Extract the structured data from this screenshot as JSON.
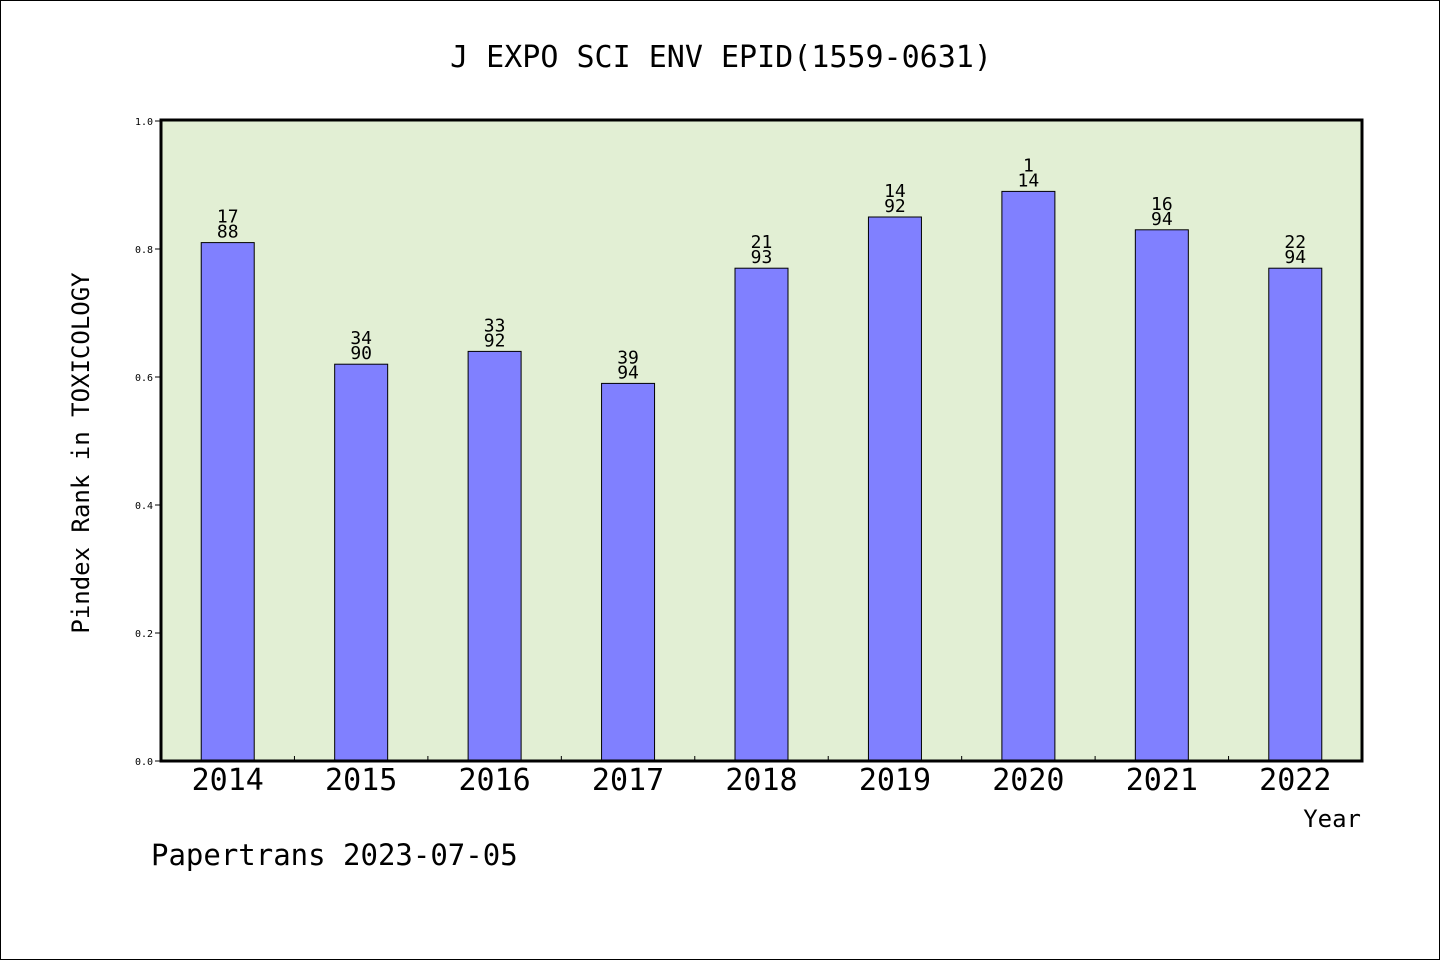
{
  "chart_data": {
    "type": "bar",
    "title": "J EXPO SCI ENV EPID(1559-0631)",
    "xlabel": "Year",
    "ylabel": "Pindex Rank in TOXICOLOGY",
    "ylim": [
      0,
      1.0
    ],
    "yticks": [
      "0.0",
      "0.2",
      "0.4",
      "0.6",
      "0.8",
      "1.0"
    ],
    "categories": [
      "2014",
      "2015",
      "2016",
      "2017",
      "2018",
      "2019",
      "2020",
      "2021",
      "2022"
    ],
    "values": [
      0.81,
      0.62,
      0.64,
      0.59,
      0.77,
      0.85,
      0.89,
      0.83,
      0.77
    ],
    "rank_labels": [
      {
        "rank": "17",
        "total": "88"
      },
      {
        "rank": "34",
        "total": "90"
      },
      {
        "rank": "33",
        "total": "92"
      },
      {
        "rank": "39",
        "total": "94"
      },
      {
        "rank": "21",
        "total": "93"
      },
      {
        "rank": "14",
        "total": "92"
      },
      {
        "rank": "1",
        "total": "14"
      },
      {
        "rank": "16",
        "total": "94"
      },
      {
        "rank": "22",
        "total": "94"
      }
    ],
    "grid": false,
    "colors": {
      "bar": "#8080ff",
      "plot_background": "#e2efd4"
    }
  },
  "footer": {
    "credit": "Papertrans 2023-07-05"
  }
}
